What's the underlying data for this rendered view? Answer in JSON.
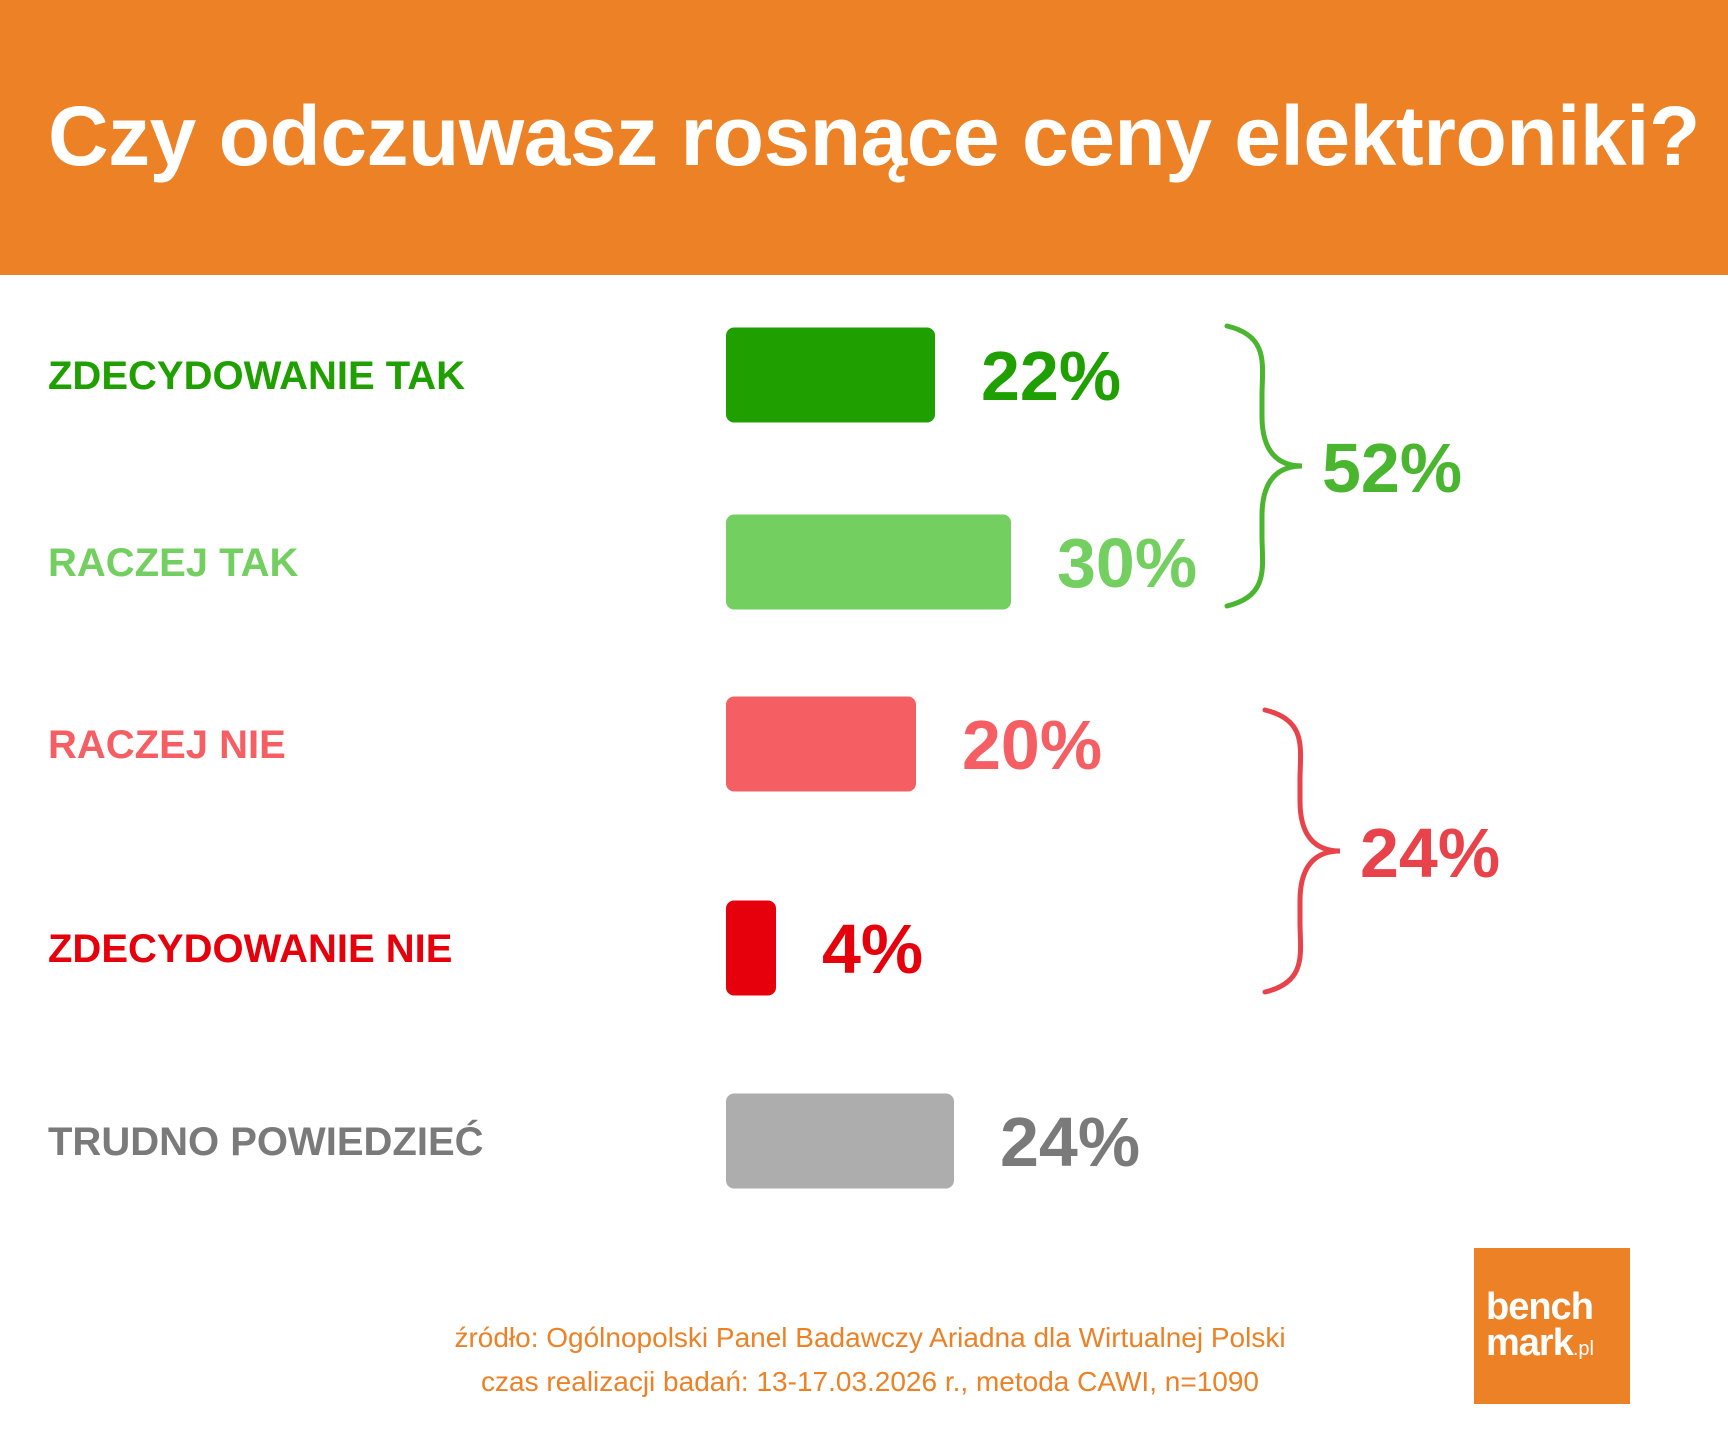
{
  "header": {
    "title": "Czy odczuwasz rosnące ceny elektroniki?"
  },
  "colors": {
    "header_bg": "#ec8125",
    "dark_green": "#1fa000",
    "light_green": "#73cf60",
    "light_red": "#f55f64",
    "dark_red": "#e5000b",
    "gray": "#adadad",
    "gray_text": "#7a7a7a",
    "bracket_green": "#4ab52e",
    "bracket_red": "#e8434a"
  },
  "chart_data": {
    "type": "bar",
    "orientation": "horizontal",
    "title": "Czy odczuwasz rosnące ceny elektroniki?",
    "categories": [
      "ZDECYDOWANIE TAK",
      "RACZEJ TAK",
      "RACZEJ NIE",
      "ZDECYDOWANIE NIE",
      "TRUDNO POWIEDZIEĆ"
    ],
    "values": [
      22,
      30,
      20,
      4,
      24
    ],
    "value_labels": [
      "22%",
      "30%",
      "20%",
      "4%",
      "24%"
    ],
    "bar_colors": [
      "#1fa000",
      "#73cf60",
      "#f55f64",
      "#e5000b",
      "#adadad"
    ],
    "label_colors": [
      "#1fa000",
      "#73cf60",
      "#f55f64",
      "#e5000b",
      "#7a7a7a"
    ],
    "groups": [
      {
        "label": "52%",
        "value": 52,
        "members": [
          0,
          1
        ],
        "color": "#4ab52e"
      },
      {
        "label": "24%",
        "value": 24,
        "members": [
          2,
          3
        ],
        "color": "#e8434a"
      }
    ],
    "xlim": [
      0,
      30
    ],
    "grid": false,
    "legend": "none"
  },
  "footer": {
    "source_line1": "źródło: Ogólnopolski Panel Badawczy Ariadna dla Wirtualnej Polski",
    "source_line2": "czas realizacji badań: 13-17.03.2026 r., metoda CAWI, n=1090"
  },
  "logo": {
    "line1": "bench",
    "line2": "mark",
    "suffix": ".pl"
  }
}
